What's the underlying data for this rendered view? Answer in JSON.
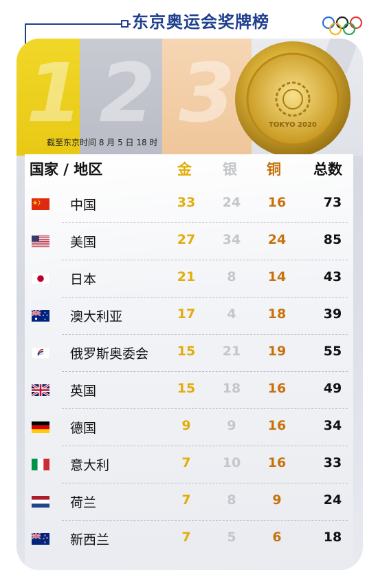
{
  "title": "东京奥运会奖牌榜",
  "cutoff_note": "截至东京时间 8 月 5 日 18 时",
  "banner_numbers": [
    "1",
    "2",
    "3"
  ],
  "medal_text": "TOKYO 2020",
  "headers": {
    "country": "国家 / 地区",
    "gold": "金",
    "silver": "银",
    "bronze": "铜",
    "total": "总数"
  },
  "colors": {
    "title": "#1f3f8f",
    "gold": "#e2ad0b",
    "silver": "#c4c6cc",
    "bronze": "#c7720b"
  },
  "rows": [
    {
      "flag": "china-flag-icon",
      "name": "中国",
      "gold": "33",
      "silver": "24",
      "bronze": "16",
      "total": "73"
    },
    {
      "flag": "usa-flag-icon",
      "name": "美国",
      "gold": "27",
      "silver": "34",
      "bronze": "24",
      "total": "85"
    },
    {
      "flag": "japan-flag-icon",
      "name": "日本",
      "gold": "21",
      "silver": "8",
      "bronze": "14",
      "total": "43"
    },
    {
      "flag": "australia-flag-icon",
      "name": "澳大利亚",
      "gold": "17",
      "silver": "4",
      "bronze": "18",
      "total": "39"
    },
    {
      "flag": "roc-flag-icon",
      "name": "俄罗斯奥委会",
      "gold": "15",
      "silver": "21",
      "bronze": "19",
      "total": "55"
    },
    {
      "flag": "uk-flag-icon",
      "name": "英国",
      "gold": "15",
      "silver": "18",
      "bronze": "16",
      "total": "49"
    },
    {
      "flag": "germany-flag-icon",
      "name": "德国",
      "gold": "9",
      "silver": "9",
      "bronze": "16",
      "total": "34"
    },
    {
      "flag": "italy-flag-icon",
      "name": "意大利",
      "gold": "7",
      "silver": "10",
      "bronze": "16",
      "total": "33"
    },
    {
      "flag": "netherlands-flag-icon",
      "name": "荷兰",
      "gold": "7",
      "silver": "8",
      "bronze": "9",
      "total": "24"
    },
    {
      "flag": "newzealand-flag-icon",
      "name": "新西兰",
      "gold": "7",
      "silver": "5",
      "bronze": "6",
      "total": "18"
    }
  ]
}
